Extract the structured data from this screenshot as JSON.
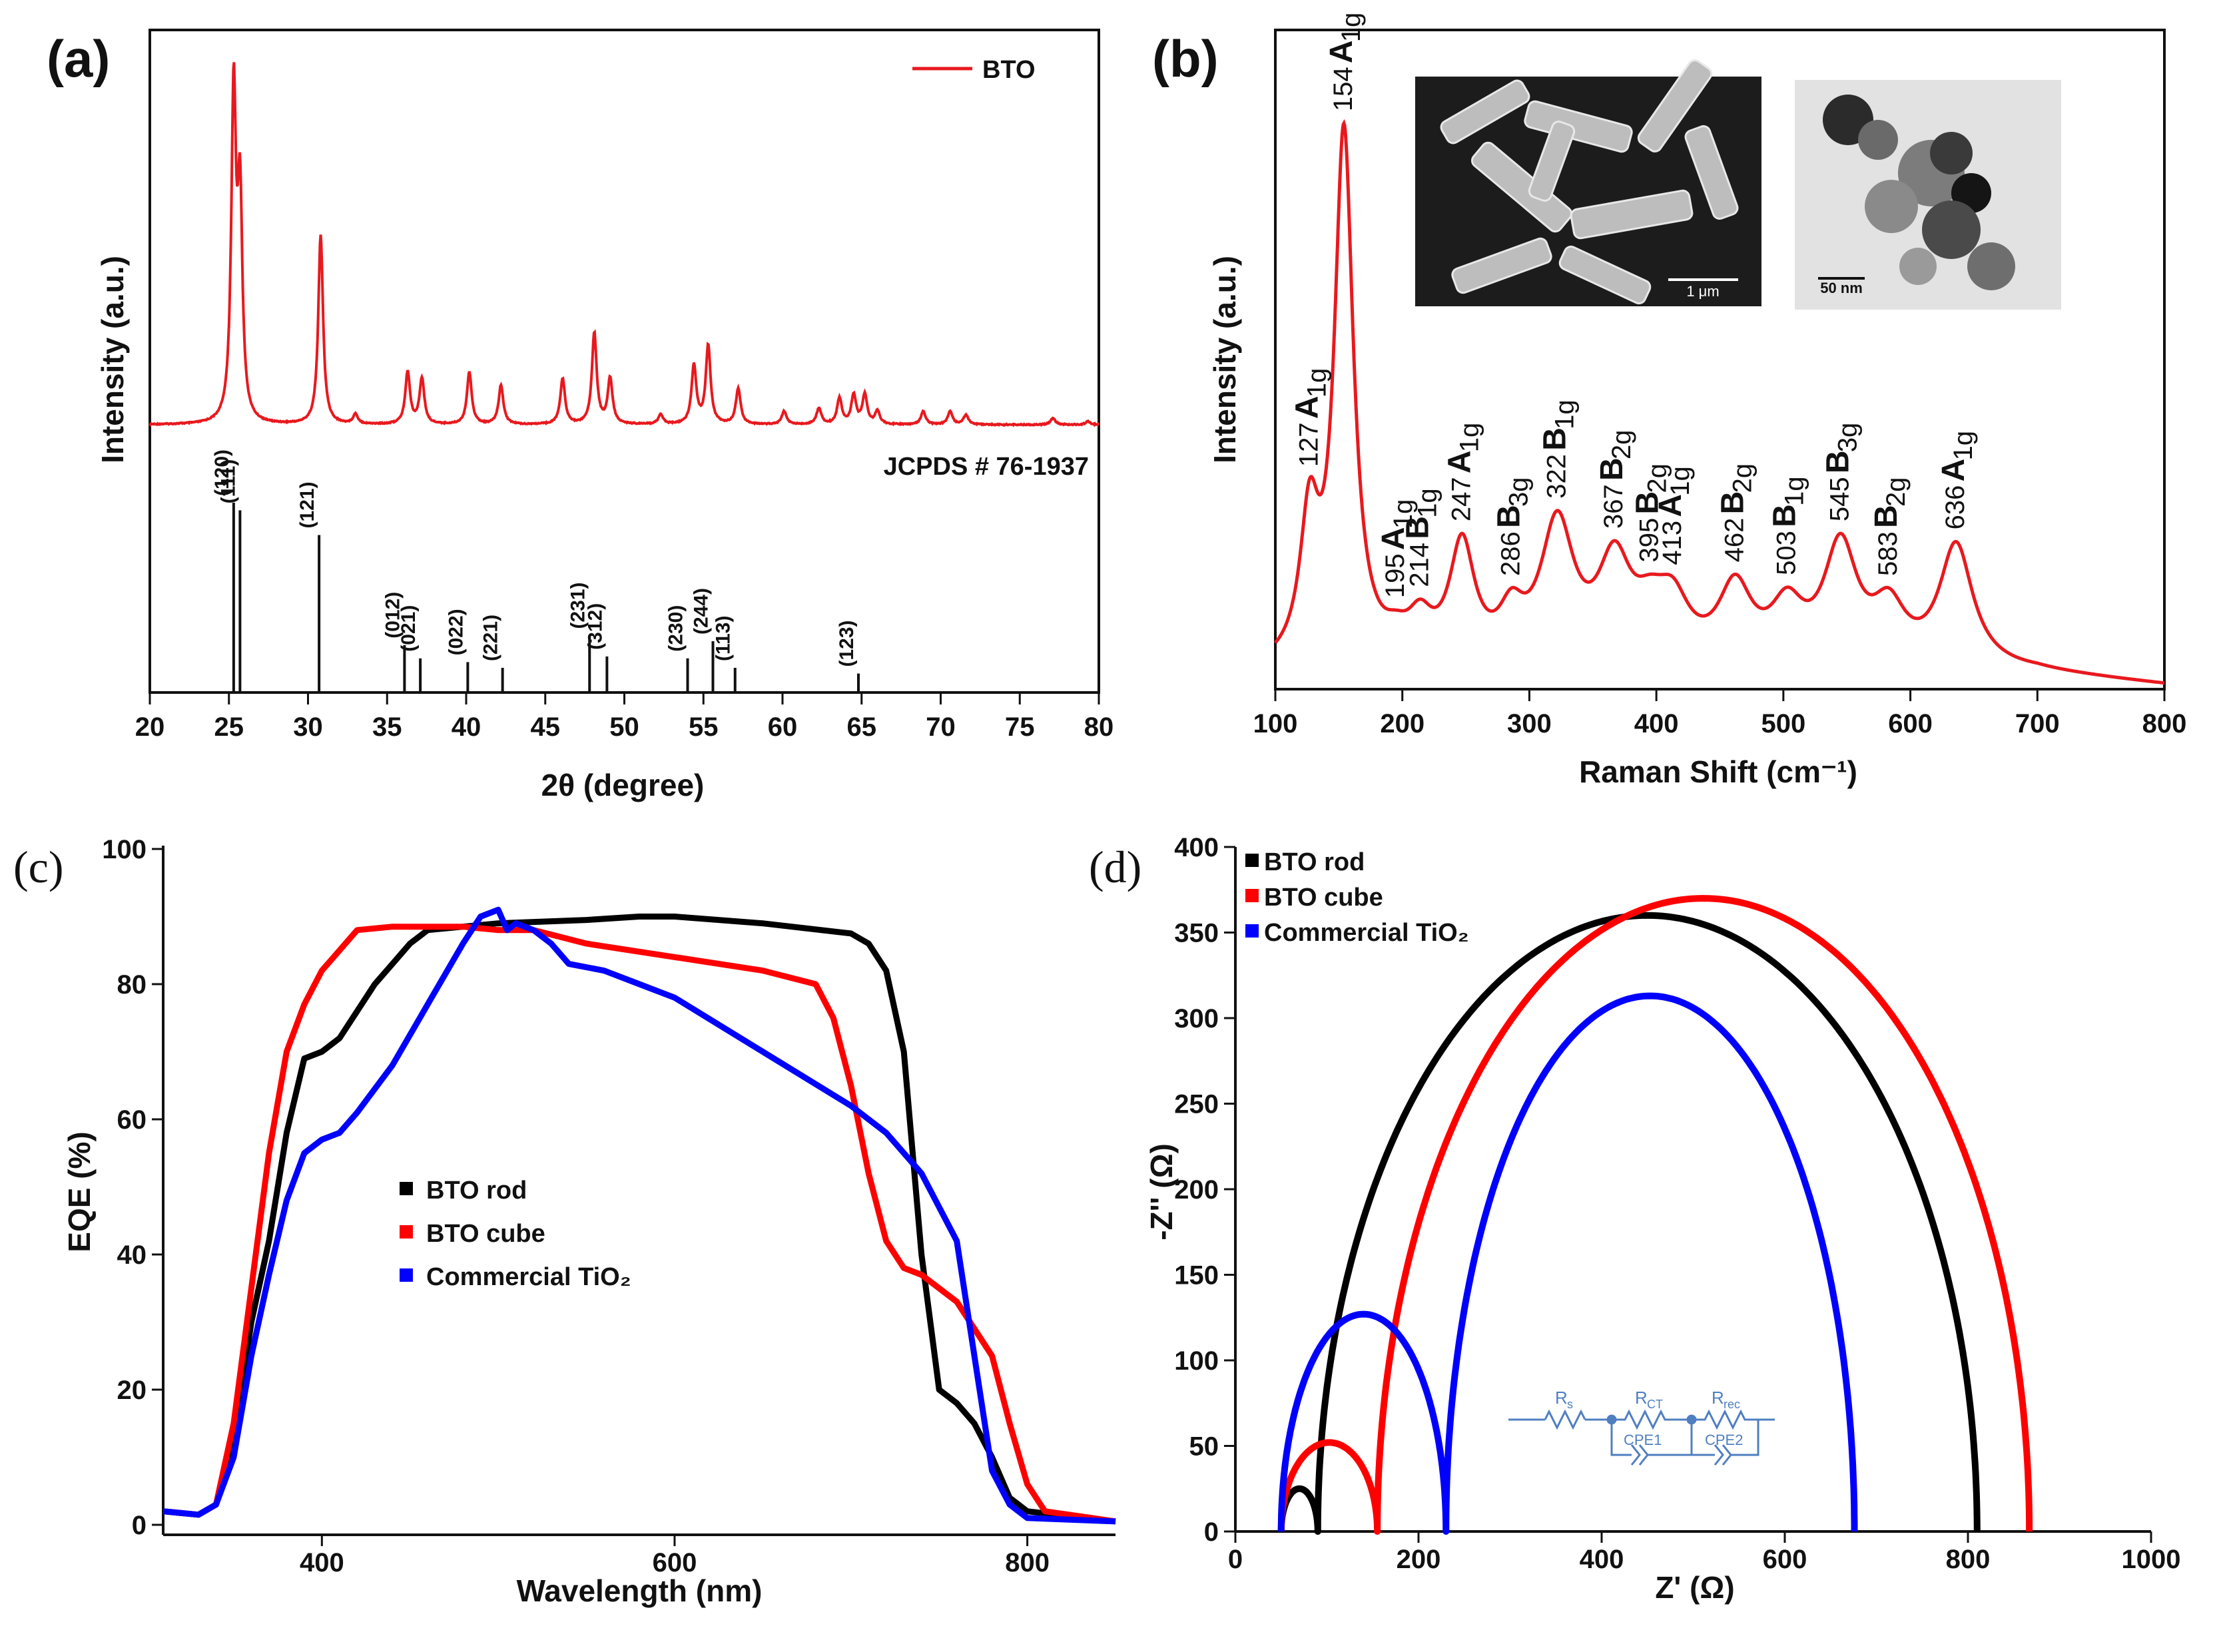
{
  "chart_data": [
    {
      "panel": "(a)",
      "type": "line",
      "xlabel": "2θ (degree)",
      "ylabel": "Intensity (a.u.)",
      "xlim": [
        20,
        80
      ],
      "xticks": [
        "20",
        "25",
        "30",
        "35",
        "40",
        "45",
        "50",
        "55",
        "60",
        "65",
        "70",
        "75",
        "80"
      ],
      "legend": {
        "position": "top-right",
        "entries": [
          "BTO"
        ]
      },
      "series": [
        {
          "name": "BTO",
          "color": "#e8191e",
          "peaks": [
            {
              "x": 25.3,
              "y": 100
            },
            {
              "x": 25.7,
              "y": 66
            },
            {
              "x": 30.8,
              "y": 58
            },
            {
              "x": 33.0,
              "y": 3
            },
            {
              "x": 36.3,
              "y": 16
            },
            {
              "x": 37.2,
              "y": 14
            },
            {
              "x": 40.2,
              "y": 16
            },
            {
              "x": 42.2,
              "y": 12
            },
            {
              "x": 46.1,
              "y": 14
            },
            {
              "x": 48.1,
              "y": 28
            },
            {
              "x": 49.1,
              "y": 14
            },
            {
              "x": 52.3,
              "y": 3
            },
            {
              "x": 54.4,
              "y": 18
            },
            {
              "x": 55.3,
              "y": 24
            },
            {
              "x": 57.2,
              "y": 11
            },
            {
              "x": 60.1,
              "y": 4
            },
            {
              "x": 62.3,
              "y": 5
            },
            {
              "x": 63.6,
              "y": 8
            },
            {
              "x": 64.5,
              "y": 9
            },
            {
              "x": 65.2,
              "y": 9
            },
            {
              "x": 66.0,
              "y": 4
            },
            {
              "x": 68.9,
              "y": 4
            },
            {
              "x": 70.6,
              "y": 4
            },
            {
              "x": 71.6,
              "y": 3
            },
            {
              "x": 77.1,
              "y": 2
            },
            {
              "x": 79.3,
              "y": 1
            }
          ]
        }
      ],
      "reference": {
        "label": "JCPDS # 76-1937",
        "lines": [
          {
            "hkl": "(120)",
            "x": 25.3,
            "h": 100
          },
          {
            "hkl": "(111)",
            "x": 25.7,
            "h": 96
          },
          {
            "hkl": "(121)",
            "x": 30.7,
            "h": 83
          },
          {
            "hkl": "(012)",
            "x": 36.1,
            "h": 25
          },
          {
            "hkl": "(021)",
            "x": 37.1,
            "h": 18
          },
          {
            "hkl": "(022)",
            "x": 40.1,
            "h": 16
          },
          {
            "hkl": "(221)",
            "x": 42.3,
            "h": 13
          },
          {
            "hkl": "(231)",
            "x": 47.8,
            "h": 30
          },
          {
            "hkl": "(312)",
            "x": 48.9,
            "h": 19
          },
          {
            "hkl": "(230)",
            "x": 54.0,
            "h": 18
          },
          {
            "hkl": "(244)",
            "x": 55.6,
            "h": 27
          },
          {
            "hkl": "(113)",
            "x": 57.0,
            "h": 13
          },
          {
            "hkl": "(123)",
            "x": 64.8,
            "h": 10
          }
        ]
      }
    },
    {
      "panel": "(b)",
      "type": "line",
      "xlabel": "Raman Shift (cm⁻¹)",
      "ylabel": "Intensity (a.u.)",
      "xlim": [
        100,
        800
      ],
      "xticks": [
        "100",
        "200",
        "300",
        "400",
        "500",
        "600",
        "700",
        "800"
      ],
      "series": [
        {
          "name": "BTO",
          "color": "#e8191e",
          "peaks": [
            {
              "x": 127,
              "y": 26
            },
            {
              "x": 154,
              "y": 100
            },
            {
              "x": 195,
              "y": 3
            },
            {
              "x": 214,
              "y": 7
            },
            {
              "x": 247,
              "y": 22
            },
            {
              "x": 286,
              "y": 8
            },
            {
              "x": 322,
              "y": 26
            },
            {
              "x": 367,
              "y": 18
            },
            {
              "x": 395,
              "y": 7
            },
            {
              "x": 413,
              "y": 10
            },
            {
              "x": 462,
              "y": 14
            },
            {
              "x": 503,
              "y": 10
            },
            {
              "x": 545,
              "y": 22
            },
            {
              "x": 583,
              "y": 10
            },
            {
              "x": 636,
              "y": 23
            }
          ]
        }
      ],
      "peak_labels": [
        {
          "x": 127,
          "value": "127",
          "mode": "A",
          "sub": "1g"
        },
        {
          "x": 154,
          "value": "154",
          "mode": "A",
          "sub": "1g"
        },
        {
          "x": 195,
          "value": "195",
          "mode": "A",
          "sub": "1g"
        },
        {
          "x": 214,
          "value": "214",
          "mode": "B",
          "sub": "1g"
        },
        {
          "x": 247,
          "value": "247",
          "mode": "A",
          "sub": "1g"
        },
        {
          "x": 286,
          "value": "286",
          "mode": "B",
          "sub": "3g"
        },
        {
          "x": 322,
          "value": "322",
          "mode": "B",
          "sub": "1g"
        },
        {
          "x": 367,
          "value": "367",
          "mode": "B",
          "sub": "2g"
        },
        {
          "x": 395,
          "value": "395",
          "mode": "B",
          "sub": "2g"
        },
        {
          "x": 413,
          "value": "413",
          "mode": "A",
          "sub": "1g"
        },
        {
          "x": 462,
          "value": "462",
          "mode": "B",
          "sub": "2g"
        },
        {
          "x": 503,
          "value": "503",
          "mode": "B",
          "sub": "1g"
        },
        {
          "x": 545,
          "value": "545",
          "mode": "B",
          "sub": "3g"
        },
        {
          "x": 583,
          "value": "583",
          "mode": "B",
          "sub": "2g"
        },
        {
          "x": 636,
          "value": "636",
          "mode": "A",
          "sub": "1g"
        }
      ],
      "insets": [
        {
          "kind": "SEM",
          "scale_bar": "1 μm"
        },
        {
          "kind": "TEM",
          "scale_bar": "50 nm"
        }
      ]
    },
    {
      "panel": "(c)",
      "type": "line",
      "xlabel": "Wavelength (nm)",
      "ylabel": "EQE (%)",
      "xlim": [
        310,
        850
      ],
      "ylim": [
        0,
        100
      ],
      "xticks": [
        "400",
        "600",
        "800"
      ],
      "yticks": [
        "0",
        "20",
        "40",
        "60",
        "80",
        "100"
      ],
      "legend": {
        "position": "center-left"
      },
      "series": [
        {
          "name": "BTO rod",
          "color": "#000000",
          "points": [
            [
              310,
              2
            ],
            [
              330,
              1.5
            ],
            [
              340,
              3
            ],
            [
              350,
              12
            ],
            [
              360,
              30
            ],
            [
              370,
              42
            ],
            [
              380,
              58
            ],
            [
              390,
              69
            ],
            [
              400,
              70
            ],
            [
              410,
              72
            ],
            [
              420,
              76
            ],
            [
              430,
              80
            ],
            [
              440,
              83
            ],
            [
              450,
              86
            ],
            [
              460,
              88
            ],
            [
              480,
              88.5
            ],
            [
              500,
              89
            ],
            [
              550,
              89.5
            ],
            [
              580,
              90
            ],
            [
              600,
              90
            ],
            [
              650,
              89
            ],
            [
              700,
              87.5
            ],
            [
              710,
              86
            ],
            [
              720,
              82
            ],
            [
              730,
              70
            ],
            [
              740,
              40
            ],
            [
              750,
              20
            ],
            [
              760,
              18
            ],
            [
              770,
              15
            ],
            [
              780,
              10
            ],
            [
              790,
              4
            ],
            [
              800,
              2
            ],
            [
              850,
              0.5
            ]
          ]
        },
        {
          "name": "BTO cube",
          "color": "#ff0000",
          "points": [
            [
              310,
              2
            ],
            [
              330,
              1.5
            ],
            [
              340,
              3
            ],
            [
              350,
              15
            ],
            [
              360,
              35
            ],
            [
              370,
              55
            ],
            [
              380,
              70
            ],
            [
              390,
              77
            ],
            [
              400,
              82
            ],
            [
              410,
              85
            ],
            [
              420,
              88
            ],
            [
              440,
              88.5
            ],
            [
              480,
              88.5
            ],
            [
              500,
              88
            ],
            [
              520,
              88
            ],
            [
              550,
              86
            ],
            [
              600,
              84
            ],
            [
              650,
              82
            ],
            [
              680,
              80
            ],
            [
              690,
              75
            ],
            [
              700,
              65
            ],
            [
              710,
              52
            ],
            [
              720,
              42
            ],
            [
              730,
              38
            ],
            [
              740,
              37
            ],
            [
              760,
              33
            ],
            [
              780,
              25
            ],
            [
              790,
              15
            ],
            [
              800,
              6
            ],
            [
              810,
              2
            ],
            [
              850,
              0.5
            ]
          ]
        },
        {
          "name": "Commercial TiO₂",
          "color": "#0000ff",
          "points": [
            [
              310,
              2
            ],
            [
              330,
              1.5
            ],
            [
              340,
              3
            ],
            [
              350,
              10
            ],
            [
              360,
              25
            ],
            [
              370,
              37
            ],
            [
              380,
              48
            ],
            [
              390,
              55
            ],
            [
              400,
              57
            ],
            [
              410,
              58
            ],
            [
              420,
              61
            ],
            [
              440,
              68
            ],
            [
              460,
              77
            ],
            [
              480,
              86
            ],
            [
              490,
              90
            ],
            [
              500,
              91
            ],
            [
              505,
              88
            ],
            [
              510,
              89
            ],
            [
              520,
              88
            ],
            [
              530,
              86
            ],
            [
              540,
              83
            ],
            [
              560,
              82
            ],
            [
              580,
              80
            ],
            [
              600,
              78
            ],
            [
              650,
              70
            ],
            [
              700,
              62
            ],
            [
              720,
              58
            ],
            [
              740,
              52
            ],
            [
              760,
              42
            ],
            [
              770,
              25
            ],
            [
              780,
              8
            ],
            [
              790,
              3
            ],
            [
              800,
              1
            ],
            [
              850,
              0.5
            ]
          ]
        }
      ]
    },
    {
      "panel": "(d)",
      "type": "line",
      "xlabel": "Z' (Ω)",
      "ylabel": "-Z'' (Ω)",
      "xlim": [
        0,
        1000
      ],
      "ylim": [
        0,
        400
      ],
      "xticks": [
        "0",
        "200",
        "400",
        "600",
        "800",
        "1000"
      ],
      "yticks": [
        "0",
        "50",
        "100",
        "150",
        "200",
        "250",
        "300",
        "350",
        "400"
      ],
      "legend": {
        "position": "top-left"
      },
      "series": [
        {
          "name": "BTO rod",
          "color": "#000000",
          "arcs": [
            {
              "z0": 50,
              "z1": 90,
              "peak": 25
            },
            {
              "z0": 90,
              "z1": 810,
              "peak": 360
            }
          ]
        },
        {
          "name": "BTO cube",
          "color": "#ff0000",
          "arcs": [
            {
              "z0": 50,
              "z1": 155,
              "peak": 52
            },
            {
              "z0": 155,
              "z1": 867,
              "peak": 370
            }
          ]
        },
        {
          "name": "Commercial TiO₂",
          "color": "#0000ff",
          "arcs": [
            {
              "z0": 50,
              "z1": 230,
              "peak": 127
            },
            {
              "z0": 230,
              "z1": 676,
              "peak": 313
            }
          ]
        }
      ],
      "circuit": {
        "labels": [
          "R",
          "s",
          "R",
          "CT",
          "R",
          "rec",
          "CPE1",
          "CPE2"
        ],
        "color": "#4f7fc0"
      }
    }
  ]
}
